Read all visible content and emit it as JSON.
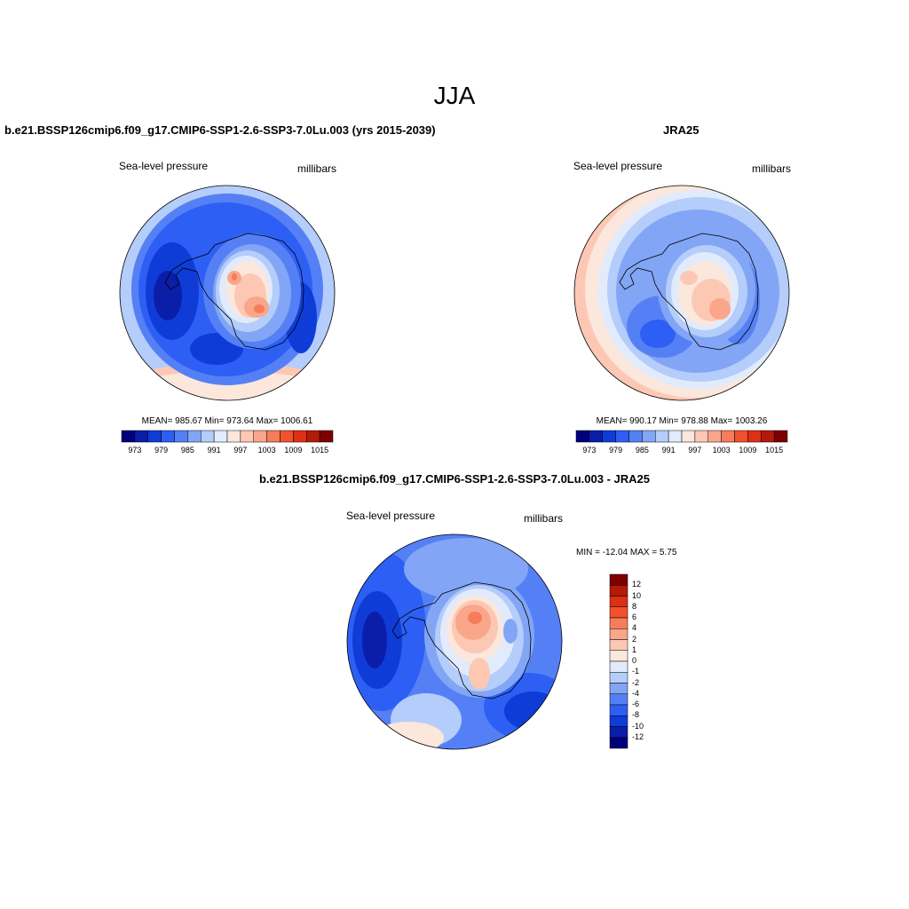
{
  "title": "JJA",
  "colors": {
    "pressure_levels": [
      "#00007d",
      "#0a1eaa",
      "#0f3cd7",
      "#2d5ff5",
      "#5580f5",
      "#82a5f5",
      "#b4cdfa",
      "#e1ebfc",
      "#fbe7dc",
      "#fcc8b4",
      "#f9a68b",
      "#f77c59",
      "#f2512d",
      "#dd3014",
      "#b21b0a",
      "#7d0000"
    ],
    "diff_levels": [
      "#00007d",
      "#0a1eaa",
      "#0f3cd7",
      "#2d5ff5",
      "#5580f5",
      "#82a5f5",
      "#b4cdfa",
      "#e1ebfc",
      "#fbe7dc",
      "#fcc8b4",
      "#f9a68b",
      "#f77c59",
      "#f2512d",
      "#dd3014",
      "#b21b0a",
      "#7d0000"
    ]
  },
  "panels": {
    "model": {
      "title": "b.e21.BSSP126cmip6.f09_g17.CMIP6-SSP1-2.6-SSP3-7.0Lu.003 (yrs 2015-2039)",
      "left_label": "Sea-level pressure",
      "right_label": "millibars",
      "stats": "MEAN= 985.67  Min= 973.64  Max= 1006.61",
      "colorbar_ticks": [
        "973",
        "979",
        "985",
        "991",
        "997",
        "1003",
        "1009",
        "1015"
      ]
    },
    "obs": {
      "title": "JRA25",
      "left_label": "Sea-level pressure",
      "right_label": "millibars",
      "stats": "MEAN= 990.17  Min= 978.88  Max= 1003.26",
      "colorbar_ticks": [
        "973",
        "979",
        "985",
        "991",
        "997",
        "1003",
        "1009",
        "1015"
      ]
    },
    "diff": {
      "title": "b.e21.BSSP126cmip6.f09_g17.CMIP6-SSP1-2.6-SSP3-7.0Lu.003 - JRA25",
      "left_label": "Sea-level pressure",
      "right_label": "millibars",
      "stats": "MIN = -12.04 MAX =   5.75",
      "colorbar_ticks": [
        "12",
        "10",
        "8",
        "6",
        "4",
        "2",
        "1",
        "0",
        "-1",
        "-2",
        "-4",
        "-6",
        "-8",
        "-10",
        "-12"
      ]
    }
  }
}
